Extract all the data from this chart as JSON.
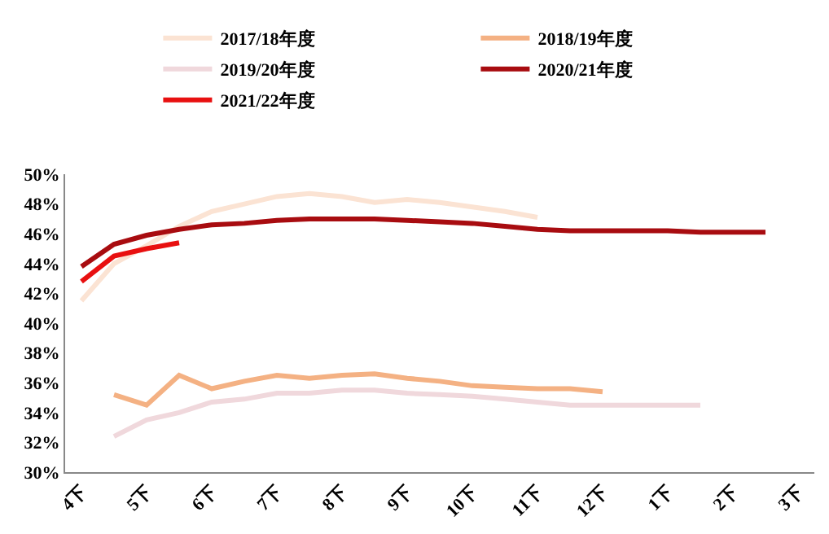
{
  "chart_data": {
    "type": "line",
    "categories": [
      "4下",
      null,
      "5下",
      null,
      "6下",
      null,
      "7下",
      null,
      "8下",
      null,
      "9下",
      null,
      "10下",
      null,
      "11下",
      null,
      "12下",
      null,
      "1下",
      null,
      "2下",
      null,
      "3下"
    ],
    "series": [
      {
        "name": "2017/18年度",
        "color": "#fbe3d3",
        "values": [
          41.5,
          44.0,
          45.2,
          46.5,
          47.5,
          48.0,
          48.5,
          48.7,
          48.5,
          48.1,
          48.3,
          48.1,
          47.8,
          47.5,
          47.1,
          null,
          null,
          null,
          null,
          null,
          null,
          null,
          null
        ]
      },
      {
        "name": "2018/19年度",
        "color": "#f4b183",
        "values": [
          null,
          35.2,
          34.5,
          36.5,
          35.6,
          36.1,
          36.5,
          36.3,
          36.5,
          36.6,
          36.3,
          36.1,
          35.8,
          35.7,
          35.6,
          35.6,
          35.4,
          null,
          null,
          null,
          null,
          null,
          null
        ]
      },
      {
        "name": "2019/20年度",
        "color": "#f0d8dc",
        "values": [
          null,
          32.4,
          33.5,
          34.0,
          34.7,
          34.9,
          35.3,
          35.3,
          35.5,
          35.5,
          35.3,
          35.2,
          35.1,
          34.9,
          34.7,
          34.5,
          34.5,
          34.5,
          34.5,
          34.5,
          null,
          null,
          null
        ]
      },
      {
        "name": "2020/21年度",
        "color": "#a80c10",
        "values": [
          43.8,
          45.3,
          45.9,
          46.3,
          46.6,
          46.7,
          46.9,
          47.0,
          47.0,
          47.0,
          46.9,
          46.8,
          46.7,
          46.5,
          46.3,
          46.2,
          46.2,
          46.2,
          46.2,
          46.1,
          46.1,
          46.1,
          null
        ]
      },
      {
        "name": "2021/22年度",
        "color": "#e81010",
        "values": [
          42.8,
          44.5,
          45.0,
          45.4,
          null,
          null,
          null,
          null,
          null,
          null,
          null,
          null,
          null,
          null,
          null,
          null,
          null,
          null,
          null,
          null,
          null,
          null,
          null
        ]
      }
    ],
    "ylim": [
      30,
      50
    ],
    "yticks": [
      {
        "value": 30,
        "label": "30%"
      },
      {
        "value": 32,
        "label": "32%"
      },
      {
        "value": 34,
        "label": "34%"
      },
      {
        "value": 36,
        "label": "36%"
      },
      {
        "value": 38,
        "label": "38%"
      },
      {
        "value": 40,
        "label": "40%"
      },
      {
        "value": 42,
        "label": "42%"
      },
      {
        "value": 44,
        "label": "44%"
      },
      {
        "value": 46,
        "label": "46%"
      },
      {
        "value": 48,
        "label": "48%"
      },
      {
        "value": 50,
        "label": "50%"
      }
    ],
    "grid": false,
    "legend": "top",
    "marker": "none",
    "line_style": "solid"
  }
}
